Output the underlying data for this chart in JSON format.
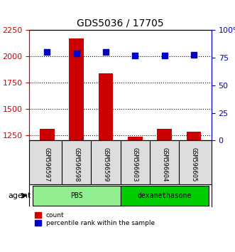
{
  "title": "GDS5036 / 17705",
  "samples": [
    "GSM596597",
    "GSM596598",
    "GSM596599",
    "GSM596603",
    "GSM596604",
    "GSM596605"
  ],
  "counts": [
    1310,
    2170,
    1840,
    1235,
    1310,
    1285
  ],
  "percentile_ranks": [
    80,
    79,
    80,
    77,
    77,
    78
  ],
  "ylim_left": [
    1200,
    2250
  ],
  "ylim_right": [
    0,
    100
  ],
  "yticks_left": [
    1250,
    1500,
    1750,
    2000,
    2250
  ],
  "yticks_right": [
    0,
    25,
    50,
    75,
    100
  ],
  "ytick_labels_left": [
    "1250",
    "1500",
    "1750",
    "2000",
    "2250"
  ],
  "ytick_labels_right": [
    "0",
    "25",
    "50",
    "75",
    "100%"
  ],
  "groups": [
    {
      "label": "PBS",
      "samples": [
        0,
        1,
        2
      ],
      "color": "#90EE90"
    },
    {
      "label": "dexamethasone",
      "samples": [
        3,
        4,
        5
      ],
      "color": "#00CC00"
    }
  ],
  "bar_color": "#CC0000",
  "dot_color": "#0000CC",
  "bar_width": 0.5,
  "left_axis_color": "#CC0000",
  "right_axis_color": "#0000CC",
  "background_color": "#FFFFFF",
  "plot_bg_color": "#FFFFFF",
  "gridline_style": "dotted"
}
